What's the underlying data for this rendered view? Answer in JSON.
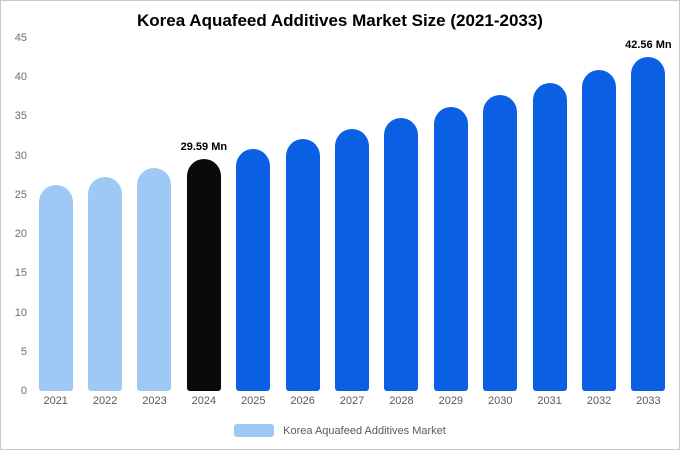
{
  "title": "Korea Aquafeed Additives Market Size (2021-2033)",
  "legend": {
    "label": "Korea Aquafeed Additives Market",
    "swatch_color": "#9dc9f4"
  },
  "colors": {
    "historical_bar": "#9dc9f4",
    "base_year_bar": "#0a0a0a",
    "forecast_bar": "#0b5fe3",
    "tick_text": "#6e6e6e",
    "axis_text": "#595959"
  },
  "chart_data": {
    "type": "bar",
    "title": "Korea Aquafeed Additives Market Size (2021-2033)",
    "categories": [
      "2021",
      "2022",
      "2023",
      "2024",
      "2025",
      "2026",
      "2027",
      "2028",
      "2029",
      "2030",
      "2031",
      "2032",
      "2033"
    ],
    "values": [
      26.2,
      27.3,
      28.4,
      29.59,
      30.8,
      32.1,
      33.4,
      34.8,
      36.2,
      37.7,
      39.3,
      40.9,
      42.56
    ],
    "bar_colors": [
      "#9dc9f4",
      "#9dc9f4",
      "#9dc9f4",
      "#0a0a0a",
      "#0b5fe3",
      "#0b5fe3",
      "#0b5fe3",
      "#0b5fe3",
      "#0b5fe3",
      "#0b5fe3",
      "#0b5fe3",
      "#0b5fe3",
      "#0b5fe3"
    ],
    "data_labels": [
      {
        "index": 3,
        "text": "29.59 Mn"
      },
      {
        "index": 12,
        "text": "42.56 Mn"
      }
    ],
    "xlabel": "",
    "ylabel": "",
    "ylim": [
      0,
      45
    ],
    "ytick_step": 5,
    "grid": false,
    "legend_position": "bottom",
    "unit": "Mn"
  }
}
